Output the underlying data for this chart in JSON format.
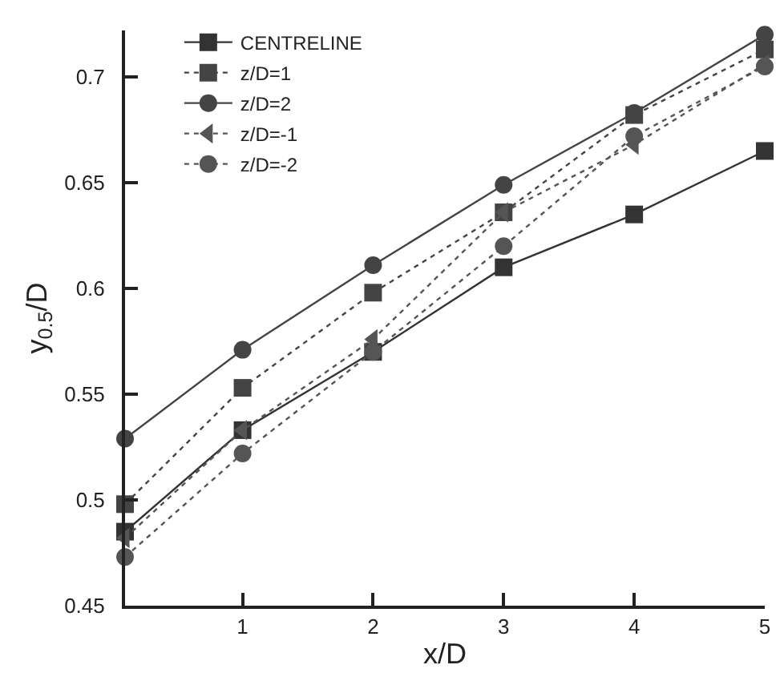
{
  "chart_data": {
    "type": "line",
    "xlabel": "x/D",
    "ylabel": "y$_{0.5}$/D",
    "x": [
      0.1,
      1,
      2,
      3,
      4,
      5
    ],
    "xlim": [
      0.1,
      5
    ],
    "xticks": [
      1,
      2,
      3,
      4,
      5
    ],
    "ylim": [
      0.45,
      0.722
    ],
    "yticks": [
      0.45,
      0.5,
      0.55,
      0.6,
      0.65,
      0.7
    ],
    "grid": false,
    "legend": "top left",
    "series": [
      {
        "name": "CENTRELINE",
        "color": "#333333",
        "marker": "square",
        "line_style": "solid",
        "values": [
          0.485,
          0.533,
          0.57,
          0.61,
          0.635,
          0.665
        ]
      },
      {
        "name": "z/D=1",
        "color": "#444444",
        "marker": "square",
        "line_style": "dotted",
        "values": [
          0.498,
          0.553,
          0.598,
          0.636,
          0.682,
          0.713
        ]
      },
      {
        "name": "z/D=2",
        "color": "#444444",
        "marker": "circle",
        "line_style": "solid",
        "values": [
          0.529,
          0.571,
          0.611,
          0.649,
          0.683,
          0.72
        ]
      },
      {
        "name": "z/D=-1",
        "color": "#555555",
        "marker": "triangle",
        "line_style": "dotted",
        "values": [
          0.482,
          0.533,
          0.576,
          0.636,
          0.668,
          0.706
        ]
      },
      {
        "name": "z/D=-2",
        "color": "#555555",
        "marker": "circle",
        "line_style": "dotted",
        "values": [
          0.473,
          0.522,
          0.57,
          0.62,
          0.672,
          0.705
        ]
      }
    ]
  }
}
